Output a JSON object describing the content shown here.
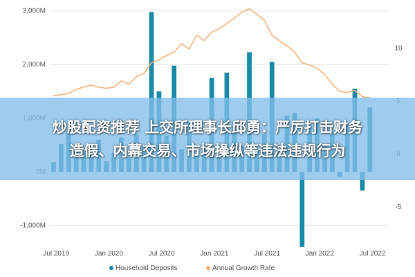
{
  "overlay": {
    "headline_line1": "炒股配资推荐 上交所理事长邱勇：严厉打击财务",
    "headline_line2": "造假、内幕交易、市场操纵等违法违规行为"
  },
  "chart_data": {
    "type": "bar+line",
    "x_tick_labels": [
      "Jul 2019",
      "Jan 2020",
      "Jul 2020",
      "Jan 2021",
      "Jul 2021",
      "Jan 2022",
      "Jul 2022"
    ],
    "y_left_tick_labels": [
      "3,000M",
      "2,000M",
      "1,000M",
      "0M",
      "-1,000M"
    ],
    "y_right_tick_labels": [
      "10",
      "5",
      "0",
      "-5"
    ],
    "ylim_left": [
      -1250,
      3100
    ],
    "ylim_right": [
      -8,
      14
    ],
    "x_range": [
      0,
      45
    ],
    "bar_color": "#1a8aa6",
    "line_color": "#f5b57a",
    "series": [
      {
        "name": "Household Deposits",
        "kind": "bar",
        "axis": "left",
        "values": [
          180,
          520,
          750,
          380,
          450,
          300,
          600,
          200,
          350,
          640,
          280,
          700,
          500,
          2980,
          1500,
          680,
          1980,
          420,
          950,
          300,
          450,
          1750,
          350,
          1850,
          800,
          480,
          2230,
          420,
          700,
          2050,
          380,
          1050,
          1100,
          -1400,
          860,
          1000,
          480,
          730,
          -100,
          900,
          1550,
          -350,
          1200
        ]
      },
      {
        "name": "Annual Growth Rate",
        "kind": "line",
        "axis": "right",
        "values": [
          5.5,
          5.6,
          5.7,
          6.1,
          6.3,
          6.5,
          6.3,
          6.2,
          6.3,
          6.9,
          6.6,
          7.3,
          7.6,
          8.6,
          8.9,
          9.3,
          9.6,
          10.4,
          9.9,
          11.2,
          10.7,
          11.5,
          11.8,
          12.3,
          12.8,
          13.4,
          13.7,
          13.2,
          12.6,
          11.2,
          10.7,
          10.2,
          9.6,
          8.6,
          8.4,
          8.1,
          7.5,
          6.6,
          5.9,
          5.8,
          6.0,
          5.4,
          5.3
        ]
      }
    ],
    "legend_position": "bottom"
  }
}
